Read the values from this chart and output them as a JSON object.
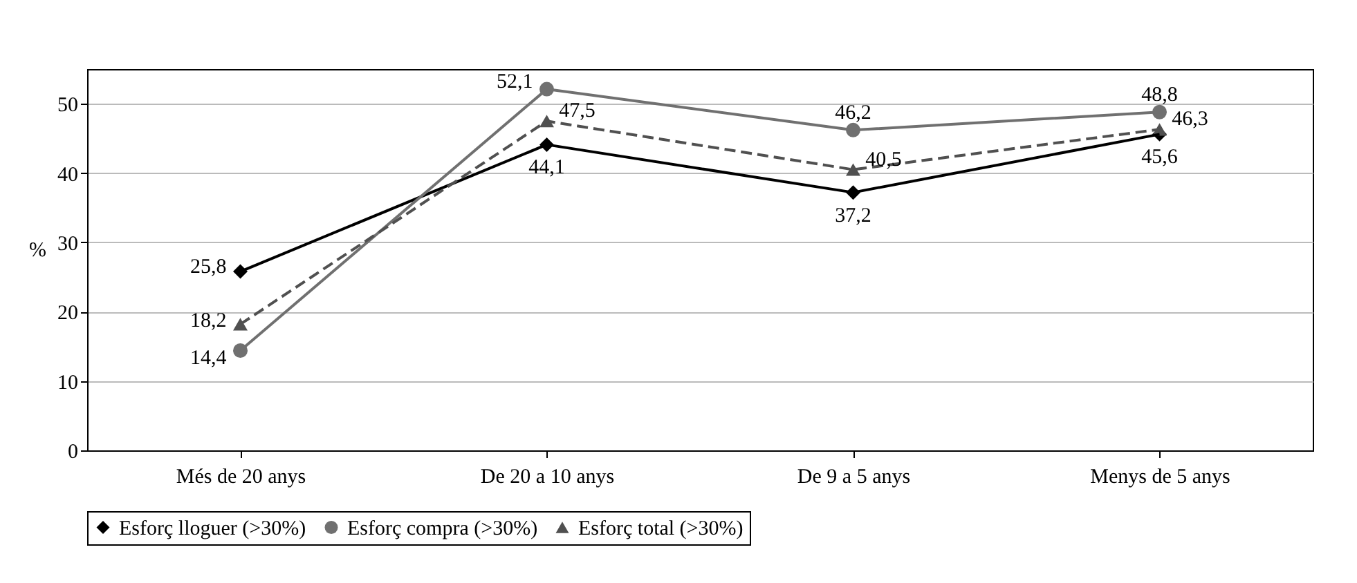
{
  "chart_data": {
    "type": "line",
    "ylabel": "%",
    "categories": [
      "Més de 20 anys",
      "De 20 a 10 anys",
      "De 9 a 5 anys",
      "Menys de 5 anys"
    ],
    "series": [
      {
        "name": "Esforç lloguer (>30%)",
        "color": "#000000",
        "marker": "diamond",
        "line_style": "solid",
        "values": [
          25.8,
          44.1,
          37.2,
          45.6
        ],
        "value_labels": [
          "25,8",
          "44,1",
          "37,2",
          "45,6"
        ]
      },
      {
        "name": "Esforç compra (>30%)",
        "color": "#707070",
        "marker": "circle",
        "line_style": "solid",
        "values": [
          14.4,
          52.1,
          46.2,
          48.8
        ],
        "value_labels": [
          "14,4",
          "52,1",
          "46,2",
          "48,8"
        ]
      },
      {
        "name": "Esforç total (>30%)",
        "color": "#505050",
        "marker": "triangle",
        "line_style": "dashed",
        "values": [
          18.2,
          47.5,
          40.5,
          46.3
        ],
        "value_labels": [
          "18,2",
          "47,5",
          "40,5",
          "46,3"
        ]
      }
    ],
    "ylim": [
      0,
      55
    ],
    "yticks": [
      0,
      10,
      20,
      30,
      40,
      50
    ],
    "grid": "y",
    "legend": "bottom"
  }
}
